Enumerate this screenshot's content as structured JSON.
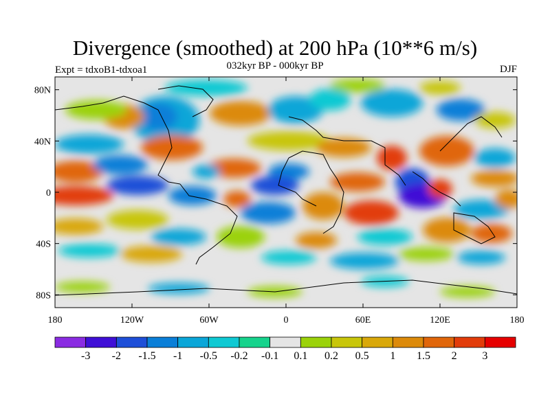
{
  "title": "Divergence (smoothed) at 200 hPa (10**6 m/s)",
  "subtitle": "032kyr BP - 000kyr BP",
  "left_label": "Expt = tdxoB1-tdxoa1",
  "right_label": "DJF",
  "map": {
    "x_ticks": [
      {
        "lon": -180,
        "label": "180"
      },
      {
        "lon": -120,
        "label": "120W"
      },
      {
        "lon": -60,
        "label": "60W"
      },
      {
        "lon": 0,
        "label": "0"
      },
      {
        "lon": 60,
        "label": "60E"
      },
      {
        "lon": 120,
        "label": "120E"
      },
      {
        "lon": 180,
        "label": "180"
      }
    ],
    "y_ticks": [
      {
        "lat": 80,
        "label": "80N"
      },
      {
        "lat": 40,
        "label": "40N"
      },
      {
        "lat": 0,
        "label": "0"
      },
      {
        "lat": -40,
        "label": "40S"
      },
      {
        "lat": -80,
        "label": "80S"
      }
    ],
    "lon_range": [
      -180,
      180
    ],
    "lat_range": [
      -90,
      90
    ]
  },
  "colorbar": {
    "colors": [
      "#8a2be2",
      "#3f0fd6",
      "#1e4fd8",
      "#0a7fd8",
      "#0aa6d8",
      "#0fc9d3",
      "#16d38c",
      "#e5e5e5",
      "#9bd20a",
      "#c8c60a",
      "#d9a80a",
      "#dc8a0a",
      "#e0660a",
      "#e23c0a",
      "#e60000"
    ],
    "labels": [
      "-3",
      "-2",
      "-1.5",
      "-1",
      "-0.5",
      "-0.2",
      "-0.1",
      "0.1",
      "0.2",
      "0.5",
      "1",
      "1.5",
      "2",
      "3"
    ]
  },
  "chart_data": {
    "type": "heatmap",
    "title": "Divergence (smoothed) at 200 hPa (10**6 m/s)",
    "subtitle": "032kyr BP - 000kyr BP",
    "units": "10**6 m/s",
    "x_range_deg_lon": [
      -180,
      180
    ],
    "y_range_deg_lat": [
      -90,
      90
    ],
    "contour_levels": [
      -3,
      -2,
      -1.5,
      -1,
      -0.5,
      -0.2,
      -0.1,
      0.1,
      0.2,
      0.5,
      1,
      1.5,
      2,
      3
    ],
    "features": [
      {
        "lon": 110,
        "lat": -5,
        "value": -3
      },
      {
        "lon": 125,
        "lat": 8,
        "value": 3
      },
      {
        "lon": 75,
        "lat": 25,
        "value": 2
      },
      {
        "lon": 65,
        "lat": -15,
        "value": 2
      },
      {
        "lon": -155,
        "lat": 20,
        "value": 1.5
      },
      {
        "lon": -175,
        "lat": 0,
        "value": 2
      },
      {
        "lon": -40,
        "lat": 15,
        "value": 1.5
      },
      {
        "lon": -55,
        "lat": -5,
        "value": -1.5
      },
      {
        "lon": 0,
        "lat": 5,
        "value": -2
      },
      {
        "lon": -120,
        "lat": 65,
        "value": -1
      },
      {
        "lon": -80,
        "lat": 35,
        "value": 1.5
      },
      {
        "lon": -100,
        "lat": 10,
        "value": -1.5
      },
      {
        "lon": 30,
        "lat": 55,
        "value": -1
      },
      {
        "lon": 155,
        "lat": 40,
        "value": 1.5
      },
      {
        "lon": 150,
        "lat": -15,
        "value": 1
      },
      {
        "lon": 40,
        "lat": -45,
        "value": -1
      },
      {
        "lon": -150,
        "lat": -25,
        "value": 0.5
      },
      {
        "lon": -10,
        "lat": -35,
        "value": 1
      }
    ]
  }
}
